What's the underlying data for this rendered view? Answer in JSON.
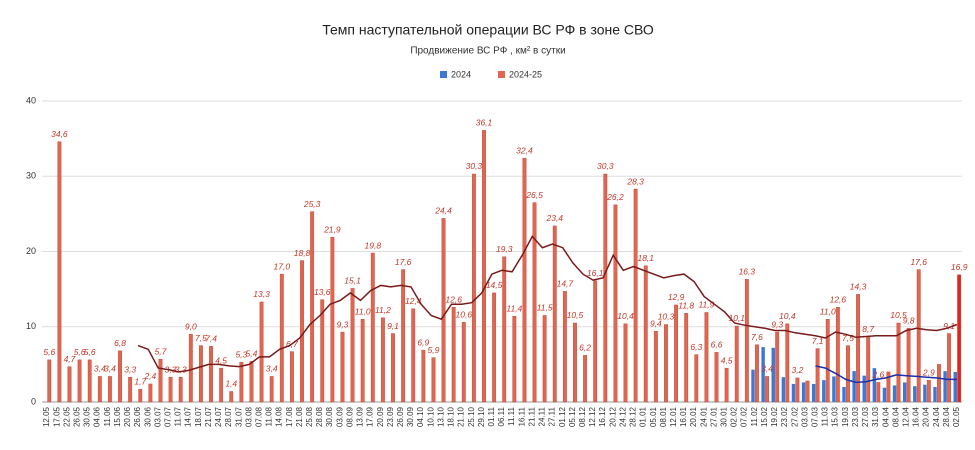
{
  "chart_data": {
    "type": "bar",
    "title": "Темп наступательной операции ВС РФ в зоне СВО",
    "subtitle": "Продвижение ВС РФ , км² в сутки",
    "categories": [
      "12.05",
      "17.05",
      "22.05",
      "26.05",
      "30.05",
      "04.06",
      "11.06",
      "15.06",
      "20.06",
      "26.06",
      "30.06",
      "03.07",
      "07.07",
      "11.07",
      "14.07",
      "18.07",
      "21.07",
      "24.07",
      "28.07",
      "31.07",
      "03.08",
      "07.08",
      "11.08",
      "14.08",
      "17.08",
      "21.08",
      "25.08",
      "28.08",
      "30.08",
      "03.09",
      "08.09",
      "13.09",
      "17.09",
      "20.09",
      "23.09",
      "26.09",
      "30.09",
      "04.10",
      "10.10",
      "13.10",
      "18.10",
      "21.10",
      "25.10",
      "29.10",
      "01.11",
      "06.11",
      "11.11",
      "16.11",
      "21.11",
      "24.11",
      "27.11",
      "01.12",
      "05.12",
      "08.12",
      "12.12",
      "16.12",
      "20.12",
      "24.12",
      "28.12",
      "01.01",
      "05.01",
      "08.01",
      "12.01",
      "16.01",
      "20.01",
      "24.01",
      "27.01",
      "30.01",
      "02.02",
      "07.02",
      "11.02",
      "15.02",
      "19.02",
      "23.02",
      "27.02",
      "03.03",
      "07.03",
      "11.03",
      "15.03",
      "19.03",
      "23.03",
      "27.03",
      "31.03",
      "04.04",
      "08.04",
      "12.04",
      "16.04",
      "20.04",
      "24.04",
      "28.04",
      "02.05"
    ],
    "series": [
      {
        "name": "2024",
        "color": "#3c78d8",
        "values": [
          null,
          null,
          null,
          null,
          null,
          null,
          null,
          null,
          null,
          null,
          null,
          null,
          null,
          null,
          null,
          null,
          null,
          null,
          null,
          null,
          null,
          null,
          null,
          null,
          null,
          null,
          null,
          null,
          null,
          null,
          null,
          null,
          null,
          null,
          null,
          null,
          null,
          null,
          null,
          null,
          null,
          null,
          null,
          null,
          null,
          null,
          null,
          null,
          null,
          null,
          null,
          null,
          null,
          null,
          null,
          null,
          null,
          null,
          null,
          null,
          null,
          null,
          null,
          null,
          null,
          null,
          null,
          null,
          null,
          null,
          4.3,
          7.3,
          7.2,
          3.3,
          2.4,
          2.6,
          2.4,
          2.9,
          3.4,
          2.0,
          4.1,
          3.5,
          4.5,
          1.9,
          2.2,
          2.6,
          2.1,
          2.3,
          2.0,
          4.1,
          4.0
        ]
      },
      {
        "name": "2024-25",
        "color": "#e06650",
        "values": [
          5.6,
          34.6,
          4.7,
          5.6,
          5.6,
          3.4,
          3.4,
          6.8,
          3.3,
          1.7,
          2.4,
          5.7,
          3.3,
          3.3,
          9.0,
          7.5,
          7.4,
          4.5,
          1.4,
          5.3,
          5.4,
          13.3,
          3.4,
          17.0,
          6.7,
          18.8,
          25.3,
          13.6,
          21.9,
          9.3,
          15.1,
          11.0,
          19.8,
          11.2,
          9.1,
          17.6,
          12.4,
          6.9,
          5.9,
          24.4,
          12.6,
          10.6,
          30.3,
          36.1,
          14.5,
          19.3,
          11.4,
          32.4,
          26.5,
          11.5,
          23.4,
          14.7,
          10.5,
          6.2,
          16.1,
          30.3,
          26.2,
          10.4,
          28.3,
          18.1,
          9.4,
          10.3,
          12.9,
          11.8,
          6.3,
          11.9,
          6.6,
          4.5,
          10.1,
          16.3,
          7.6,
          3.4,
          9.3,
          10.4,
          3.2,
          2.8,
          7.1,
          11.0,
          12.6,
          7.5,
          14.3,
          8.7,
          2.6,
          4.0,
          10.5,
          9.8,
          17.6,
          2.9,
          5.0,
          9.1,
          16.9
        ],
        "value_labels": [
          "5,6",
          "34,6",
          "4,7",
          "5,6",
          "5,6",
          "3,4",
          "3,4",
          "6,8",
          "3,3",
          "1,7",
          "2,4",
          "5,7",
          "3,3",
          "3,3",
          "9,0",
          "7,5",
          "7,4",
          "4,5",
          "1,4",
          "5,3",
          "5,4",
          "13,3",
          "3,4",
          "17,0",
          "6,7",
          "18,8",
          "25,3",
          "13,6",
          "21,9",
          "9,3",
          "15,1",
          "11,0",
          "19,8",
          "11,2",
          "9,1",
          "17,6",
          "12,4",
          "6,9",
          "5,9",
          "24,4",
          "12,6",
          "10,6",
          "30,3",
          "36,1",
          "14,5",
          "19,3",
          "11,4",
          "32,4",
          "26,5",
          "11,5",
          "23,4",
          "14,7",
          "10,5",
          "6,2",
          "16,1",
          "30,3",
          "26,2",
          "10,4",
          "28,3",
          "18,1",
          "9,4",
          "10,3",
          "12,9",
          "11,8",
          "6,3",
          "11,9",
          "6,6",
          "4,5",
          "10,1",
          "16,3",
          "7,6",
          "3,4",
          "9,3",
          "10,4",
          "3,2",
          null,
          "7,1",
          "11,0",
          "12,6",
          "7,5",
          "14,3",
          "8,7",
          "2,6",
          null,
          "10,5",
          "9,8",
          "17,6",
          "2,9",
          null,
          "9,1",
          "16,9"
        ]
      }
    ],
    "lines": [
      {
        "color": "#7b1a1a",
        "values": [
          null,
          null,
          null,
          null,
          null,
          null,
          null,
          null,
          null,
          7.5,
          7.0,
          4.5,
          4.3,
          4.0,
          4.2,
          4.6,
          5.0,
          5.0,
          4.8,
          4.7,
          5.0,
          6.0,
          6.0,
          7.0,
          7.5,
          8.5,
          10.3,
          11.5,
          13.0,
          13.5,
          14.5,
          13.5,
          14.8,
          15.5,
          15.3,
          15.5,
          15.3,
          13.0,
          11.5,
          11.0,
          13.0,
          13.0,
          13.2,
          14.5,
          17.0,
          17.5,
          17.3,
          19.5,
          22.0,
          20.5,
          21.0,
          20.5,
          18.5,
          17.0,
          16.2,
          16.5,
          19.5,
          17.5,
          18.0,
          17.5,
          17.0,
          16.5,
          16.8,
          17.0,
          16.0,
          14.0,
          13.0,
          12.0,
          10.5,
          10.2,
          10.0,
          9.8,
          9.5,
          9.5,
          9.2,
          9.0,
          8.8,
          8.5,
          9.3,
          9.0,
          8.6,
          8.7,
          8.8,
          8.8,
          8.8,
          9.5,
          9.8,
          9.6,
          9.5,
          9.8,
          10.3
        ]
      },
      {
        "color": "#1c2fa8",
        "values": [
          null,
          null,
          null,
          null,
          null,
          null,
          null,
          null,
          null,
          null,
          null,
          null,
          null,
          null,
          null,
          null,
          null,
          null,
          null,
          null,
          null,
          null,
          null,
          null,
          null,
          null,
          null,
          null,
          null,
          null,
          null,
          null,
          null,
          null,
          null,
          null,
          null,
          null,
          null,
          null,
          null,
          null,
          null,
          null,
          null,
          null,
          null,
          null,
          null,
          null,
          null,
          null,
          null,
          null,
          null,
          null,
          null,
          null,
          null,
          null,
          null,
          null,
          null,
          null,
          null,
          null,
          null,
          null,
          null,
          null,
          null,
          null,
          null,
          null,
          null,
          null,
          4.8,
          4.5,
          3.8,
          3.0,
          2.6,
          2.7,
          3.0,
          3.2,
          3.6,
          3.5,
          3.4,
          3.3,
          3.2,
          3.0,
          3.0
        ]
      }
    ],
    "ylim": [
      0,
      40
    ],
    "yticks": [
      0,
      10,
      20,
      30,
      40
    ],
    "grid": true
  }
}
